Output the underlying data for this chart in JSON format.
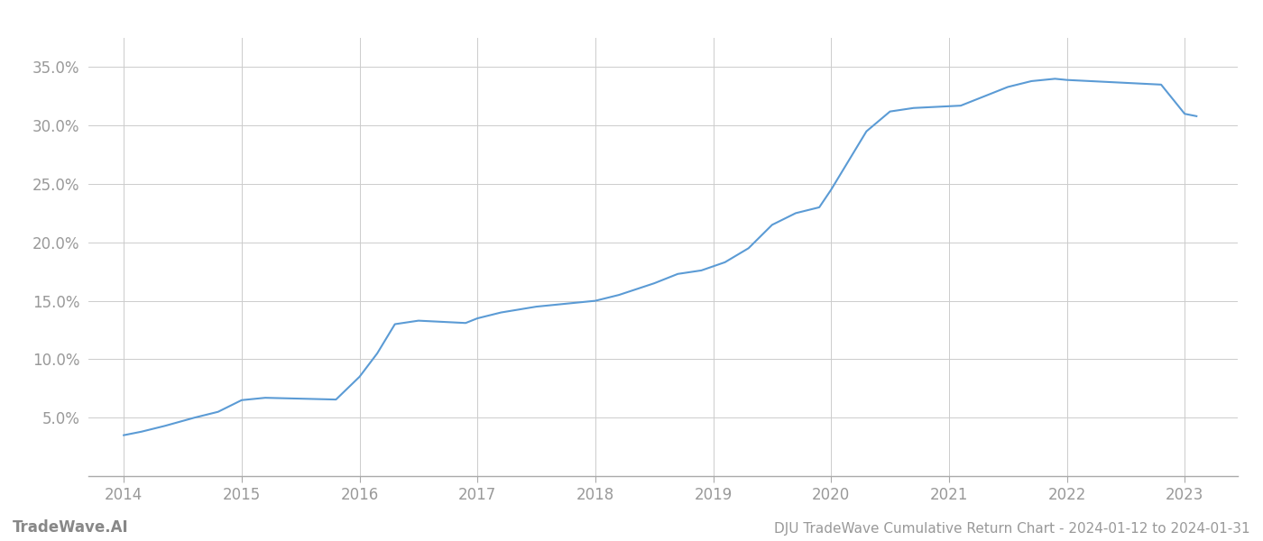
{
  "title": "DJU TradeWave Cumulative Return Chart - 2024-01-12 to 2024-01-31",
  "watermark": "TradeWave.AI",
  "x_years": [
    2014,
    2015,
    2016,
    2017,
    2018,
    2019,
    2020,
    2021,
    2022,
    2023
  ],
  "x_values": [
    2014.0,
    2014.15,
    2014.35,
    2014.6,
    2014.8,
    2015.0,
    2015.2,
    2015.4,
    2015.6,
    2015.8,
    2016.0,
    2016.15,
    2016.3,
    2016.5,
    2016.7,
    2016.9,
    2017.0,
    2017.2,
    2017.5,
    2017.8,
    2018.0,
    2018.2,
    2018.5,
    2018.7,
    2018.9,
    2019.1,
    2019.3,
    2019.5,
    2019.7,
    2019.9,
    2020.0,
    2020.15,
    2020.3,
    2020.5,
    2020.7,
    2020.9,
    2021.1,
    2021.3,
    2021.5,
    2021.7,
    2021.9,
    2022.0,
    2022.2,
    2022.4,
    2022.6,
    2022.8,
    2023.0,
    2023.1
  ],
  "y_values": [
    3.5,
    3.8,
    4.3,
    5.0,
    5.5,
    6.5,
    6.7,
    6.65,
    6.6,
    6.55,
    8.5,
    10.5,
    13.0,
    13.3,
    13.2,
    13.1,
    13.5,
    14.0,
    14.5,
    14.8,
    15.0,
    15.5,
    16.5,
    17.3,
    17.6,
    18.3,
    19.5,
    21.5,
    22.5,
    23.0,
    24.5,
    27.0,
    29.5,
    31.2,
    31.5,
    31.6,
    31.7,
    32.5,
    33.3,
    33.8,
    34.0,
    33.9,
    33.8,
    33.7,
    33.6,
    33.5,
    31.0,
    30.8
  ],
  "line_color": "#5b9bd5",
  "line_width": 1.5,
  "ylim": [
    0,
    37.5
  ],
  "yticks": [
    5.0,
    10.0,
    15.0,
    20.0,
    25.0,
    30.0,
    35.0
  ],
  "xlim": [
    2013.7,
    2023.45
  ],
  "background_color": "#ffffff",
  "grid_color": "#cccccc",
  "tick_color": "#999999",
  "title_color": "#999999",
  "watermark_color": "#888888",
  "title_fontsize": 11,
  "tick_fontsize": 12,
  "watermark_fontsize": 12
}
